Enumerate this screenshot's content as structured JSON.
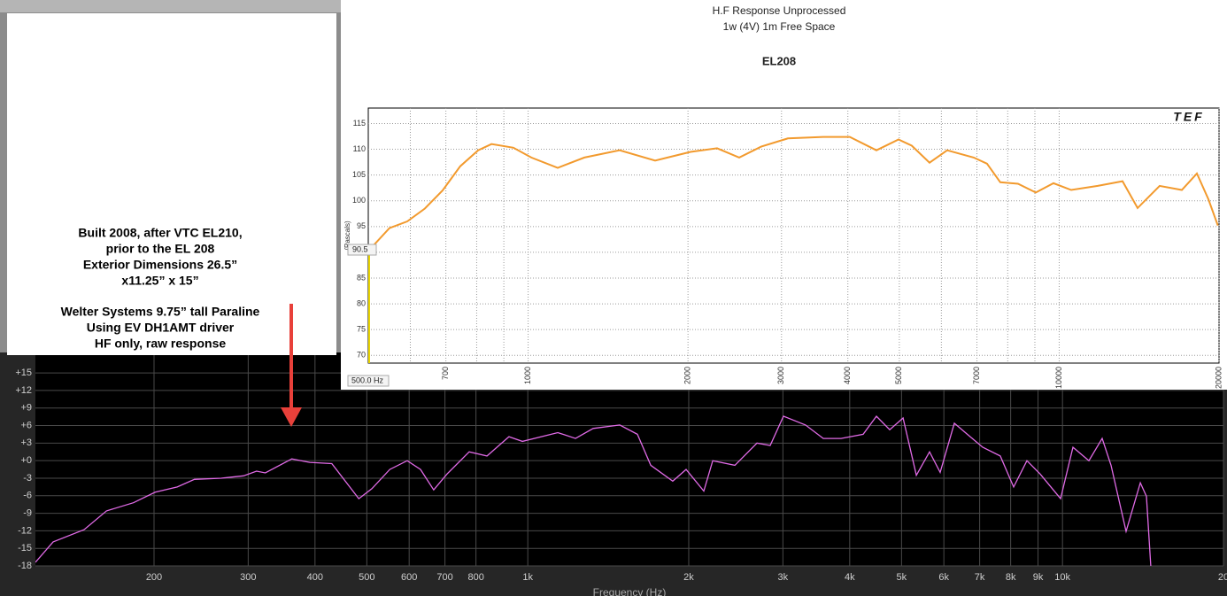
{
  "chart_data": [
    {
      "type": "line",
      "title": "H.F Response Unprocessed",
      "subtitle": "1w (4V) 1m Free Space",
      "heading": "EL208",
      "logo": "TEF",
      "y_label": "(Pascals)",
      "log_x": true,
      "grid": true,
      "xlim": [
        500,
        20000
      ],
      "ylim": [
        68.5,
        118
      ],
      "xticks": [
        700,
        1000,
        2000,
        3000,
        4000,
        5000,
        7000,
        10000,
        20000
      ],
      "x_minor_ticks": [
        600,
        800,
        900,
        6000,
        8000,
        9000
      ],
      "yticks": [
        70,
        75,
        80,
        85,
        90,
        95,
        100,
        105,
        110,
        115
      ],
      "cursor": {
        "x": {
          "value": 500,
          "label": "500.0 Hz"
        },
        "y": 90.5
      },
      "series": [
        {
          "color": "#f29a2e",
          "x": [
            508,
            548,
            592,
            639,
            690,
            745,
            805,
            853,
            938,
            1014,
            1137,
            1276,
            1487,
            1734,
            2022,
            2269,
            2497,
            2747,
            3083,
            3595,
            4034,
            4527,
            4983,
            5276,
            5700,
            6152,
            6903,
            7312,
            7745,
            8365,
            9034,
            9755,
            10534,
            11820,
            13160,
            14050,
            15460,
            17020,
            18170,
            19100,
            19900
          ],
          "values": [
            91,
            94.7,
            96,
            98.5,
            102,
            106.7,
            109.8,
            111,
            110.3,
            108.4,
            106.4,
            108.4,
            109.8,
            107.8,
            109.5,
            110.2,
            108.4,
            110.5,
            112.1,
            112.4,
            112.4,
            109.8,
            111.9,
            110.7,
            107.4,
            109.8,
            108.4,
            107.2,
            103.6,
            103.3,
            101.6,
            103.4,
            102.1,
            102.9,
            103.8,
            98.6,
            102.9,
            102.1,
            105.3,
            100.3,
            95.2
          ]
        }
      ]
    },
    {
      "type": "line",
      "x_label": "Frequency (Hz)",
      "log_x": true,
      "grid": true,
      "xlim": [
        120,
        20000
      ],
      "ylim": [
        -18,
        18.5
      ],
      "xticks": [
        200,
        300,
        400,
        500,
        600,
        700,
        800,
        {
          "value": 1000,
          "label": "1k"
        },
        {
          "value": 2000,
          "label": "2k"
        },
        {
          "value": 3000,
          "label": "3k"
        },
        {
          "value": 4000,
          "label": "4k"
        },
        {
          "value": 5000,
          "label": "5k"
        },
        {
          "value": 6000,
          "label": "6k"
        },
        {
          "value": 7000,
          "label": "7k"
        },
        {
          "value": 8000,
          "label": "8k"
        },
        {
          "value": 9000,
          "label": "9k"
        },
        {
          "value": 10000,
          "label": "10k"
        },
        {
          "value": 20000,
          "label": "20"
        }
      ],
      "yticks": [
        {
          "value": 15,
          "label": "+15"
        },
        {
          "value": 12,
          "label": "+12"
        },
        {
          "value": 9,
          "label": "+9"
        },
        {
          "value": 6,
          "label": "+6"
        },
        {
          "value": 3,
          "label": "+3"
        },
        {
          "value": 0,
          "label": "+0"
        },
        -3,
        -6,
        -9,
        -12,
        -15,
        -18
      ],
      "series": [
        {
          "color": "#e06ae6",
          "x": [
            120,
            129.5,
            148,
            163,
            183,
            201,
            221,
            238,
            267,
            294,
            311,
            323,
            362,
            391,
            430,
            483,
            511,
            552,
            595,
            630,
            667,
            706,
            777,
            839,
            922,
            977,
            1138,
            1228,
            1325,
            1486,
            1603,
            1698,
            1867,
            1977,
            2134,
            2218,
            2439,
            2683,
            2840,
            3007,
            3307,
            3570,
            3853,
            4238,
            4488,
            4752,
            5033,
            5329,
            5642,
            5906,
            6276,
            6697,
            7091,
            7650,
            8102,
            8580,
            9084,
            9919,
            10463,
            11204,
            11863,
            12324,
            13152,
            13980,
            14352,
            14628
          ],
          "values": [
            -17.4,
            -13.9,
            -11.8,
            -8.6,
            -7.2,
            -5.4,
            -4.5,
            -3.2,
            -3.0,
            -2.6,
            -1.8,
            -2.1,
            0.3,
            -0.3,
            -0.5,
            -6.5,
            -4.8,
            -1.5,
            0,
            -1.5,
            -5,
            -2.3,
            1.5,
            0.8,
            4.1,
            3.3,
            4.8,
            3.8,
            5.5,
            6.1,
            4.5,
            -0.8,
            -3.5,
            -1.5,
            -5.2,
            0,
            -0.8,
            3.0,
            2.6,
            7.6,
            6.1,
            3.8,
            3.8,
            4.5,
            7.6,
            5.3,
            7.3,
            -2.5,
            1.5,
            -2.0,
            6.4,
            4.2,
            2.3,
            0.8,
            -4.5,
            0,
            -2.3,
            -6.5,
            2.3,
            0,
            3.8,
            -0.8,
            -12.1,
            -3.8,
            -6.1,
            -18
          ]
        }
      ]
    }
  ],
  "notes": {
    "paragraphs": [
      [
        "Built 2008, after VTC EL210,",
        "prior to the EL 208",
        "Exterior Dimensions 26.5”",
        "x11.25” x 15”"
      ],
      [
        "Welter Systems 9.75” tall Paraline",
        "Using EV DH1AMT driver",
        "HF only, raw response"
      ]
    ]
  }
}
